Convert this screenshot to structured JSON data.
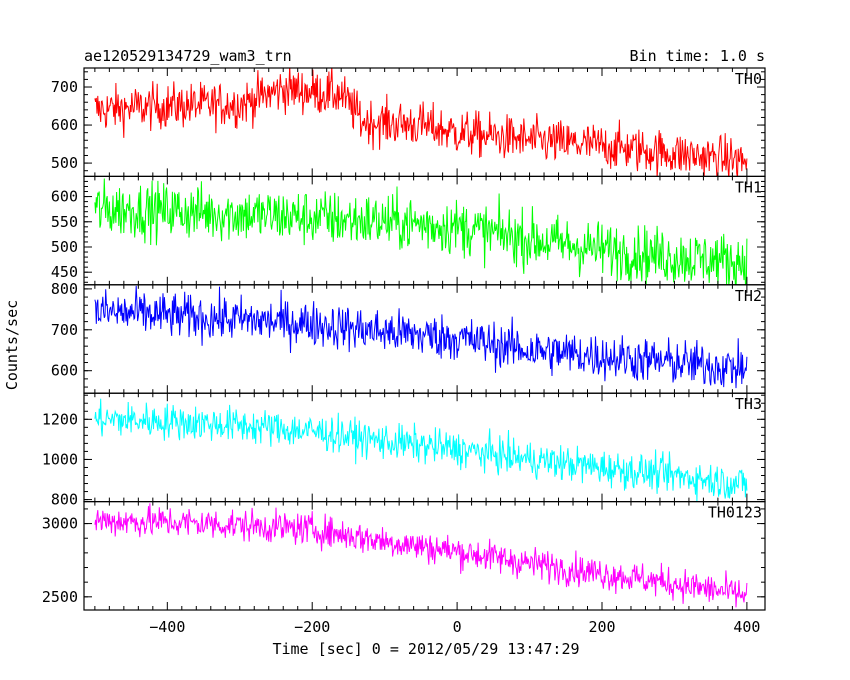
{
  "chart_data": {
    "type": "line",
    "title_left": "ae120529134729_wam3_trn",
    "title_right": "Bin time: 1.0 s",
    "xlabel": "Time [sec] 0 = 2012/05/29 13:47:29",
    "ylabel": "Counts/sec",
    "xlim": [
      -515,
      425
    ],
    "x_ticks": [
      -400,
      -200,
      0,
      200,
      400
    ],
    "x_range": [
      -500,
      400
    ],
    "bin_time": 1.0,
    "grid": false,
    "panels": [
      {
        "name": "TH0",
        "color": "#ff0000",
        "ylim": [
          465,
          750
        ],
        "y_ticks": [
          500,
          600,
          700
        ],
        "trend": [
          [
            -500,
            640
          ],
          [
            -400,
            650
          ],
          [
            -300,
            655
          ],
          [
            -240,
            695
          ],
          [
            -160,
            680
          ],
          [
            -130,
            610
          ],
          [
            -50,
            600
          ],
          [
            0,
            580
          ],
          [
            100,
            560
          ],
          [
            200,
            545
          ],
          [
            300,
            525
          ],
          [
            400,
            505
          ]
        ],
        "noise": 30
      },
      {
        "name": "TH1",
        "color": "#00ff00",
        "ylim": [
          425,
          640
        ],
        "y_ticks": [
          450,
          500,
          550,
          600
        ],
        "trend": [
          [
            -500,
            575
          ],
          [
            -400,
            572
          ],
          [
            -300,
            565
          ],
          [
            -200,
            558
          ],
          [
            -100,
            550
          ],
          [
            0,
            540
          ],
          [
            100,
            515
          ],
          [
            200,
            495
          ],
          [
            300,
            480
          ],
          [
            400,
            470
          ]
        ],
        "noise": 28
      },
      {
        "name": "TH2",
        "color": "#0000ff",
        "ylim": [
          545,
          810
        ],
        "y_ticks": [
          600,
          700,
          800
        ],
        "trend": [
          [
            -500,
            745
          ],
          [
            -400,
            735
          ],
          [
            -300,
            725
          ],
          [
            -200,
            715
          ],
          [
            -100,
            695
          ],
          [
            0,
            680
          ],
          [
            100,
            650
          ],
          [
            200,
            635
          ],
          [
            300,
            620
          ],
          [
            400,
            605
          ]
        ],
        "noise": 28
      },
      {
        "name": "TH3",
        "color": "#00ffff",
        "ylim": [
          790,
          1330
        ],
        "y_ticks": [
          800,
          1000,
          1200
        ],
        "trend": [
          [
            -500,
            1200
          ],
          [
            -400,
            1190
          ],
          [
            -300,
            1170
          ],
          [
            -200,
            1140
          ],
          [
            -100,
            1090
          ],
          [
            0,
            1050
          ],
          [
            100,
            1000
          ],
          [
            200,
            960
          ],
          [
            300,
            920
          ],
          [
            400,
            875
          ]
        ],
        "noise": 45
      },
      {
        "name": "TH0123",
        "color": "#ff00ff",
        "ylim": [
          2410,
          3150
        ],
        "y_ticks": [
          2500,
          3000
        ],
        "trend": [
          [
            -500,
            3020
          ],
          [
            -400,
            3010
          ],
          [
            -300,
            2990
          ],
          [
            -200,
            2960
          ],
          [
            -150,
            2920
          ],
          [
            -100,
            2880
          ],
          [
            0,
            2810
          ],
          [
            100,
            2730
          ],
          [
            200,
            2660
          ],
          [
            300,
            2590
          ],
          [
            400,
            2510
          ]
        ],
        "noise": 55
      }
    ]
  }
}
